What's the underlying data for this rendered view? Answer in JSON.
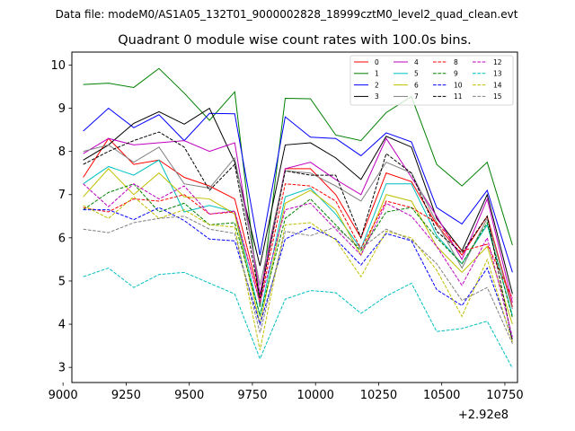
{
  "suptitle": "Data file: modeM0/AS1A05_132T01_9000002828_18999cztM0_level2_quad_clean.evt",
  "chart_data": {
    "type": "line",
    "title": "Quadrant 0 module wise count rates with 100.0s bins.",
    "xlabel": "",
    "ylabel": "",
    "x_offset_label": "+2.92e8",
    "xlim": [
      9035,
      10800
    ],
    "ylim": [
      2.65,
      10.3
    ],
    "xticks": [
      9000,
      9250,
      9500,
      9750,
      10000,
      10250,
      10500,
      10750
    ],
    "yticks": [
      3,
      4,
      5,
      6,
      7,
      8,
      9,
      10
    ],
    "x": [
      9080,
      9180,
      9280,
      9380,
      9480,
      9580,
      9680,
      9780,
      9880,
      9980,
      10080,
      10180,
      10280,
      10380,
      10480,
      10580,
      10680,
      10780
    ],
    "series": [
      {
        "name": "0",
        "color": "#ff0000",
        "dash": "solid",
        "values": [
          7.4,
          8.3,
          7.7,
          7.8,
          7.4,
          7.2,
          6.9,
          4.6,
          7.6,
          7.6,
          7.0,
          6.0,
          7.5,
          7.3,
          6.3,
          5.6,
          6.5,
          4.4
        ]
      },
      {
        "name": "1",
        "color": "#008000",
        "dash": "solid",
        "values": [
          9.55,
          9.58,
          9.48,
          9.92,
          9.35,
          8.72,
          9.38,
          4.4,
          9.23,
          9.22,
          8.38,
          8.25,
          8.9,
          9.27,
          7.7,
          7.2,
          7.75,
          5.83
        ]
      },
      {
        "name": "2",
        "color": "#0000ff",
        "dash": "solid",
        "values": [
          8.47,
          9.0,
          8.55,
          8.85,
          8.25,
          8.88,
          8.87,
          5.6,
          8.8,
          8.33,
          8.3,
          7.9,
          8.43,
          8.22,
          6.7,
          6.32,
          7.1,
          5.2
        ]
      },
      {
        "name": "3",
        "color": "#000000",
        "dash": "solid",
        "values": [
          7.8,
          8.15,
          8.65,
          8.92,
          8.63,
          9.0,
          7.75,
          5.35,
          8.15,
          8.2,
          7.85,
          7.35,
          8.35,
          8.1,
          6.45,
          5.7,
          7.0,
          4.7
        ]
      },
      {
        "name": "4",
        "color": "#bf00bf",
        "dash": "solid",
        "values": [
          7.95,
          8.3,
          8.15,
          8.2,
          8.25,
          8.0,
          8.2,
          4.7,
          7.6,
          7.75,
          7.35,
          7.0,
          8.3,
          7.4,
          6.5,
          5.5,
          6.9,
          4.5
        ]
      },
      {
        "name": "5",
        "color": "#00bfbf",
        "dash": "solid",
        "values": [
          7.25,
          7.65,
          7.45,
          7.8,
          6.6,
          6.75,
          6.6,
          4.2,
          6.95,
          7.15,
          6.55,
          5.75,
          7.25,
          7.25,
          6.05,
          5.4,
          6.3,
          4.2
        ]
      },
      {
        "name": "6",
        "color": "#bfbf00",
        "dash": "solid",
        "values": [
          6.95,
          7.6,
          7.0,
          7.5,
          6.95,
          6.9,
          6.55,
          4.0,
          6.8,
          7.1,
          6.65,
          5.6,
          7.0,
          6.85,
          5.8,
          5.2,
          5.8,
          4.0
        ]
      },
      {
        "name": "7",
        "color": "#808080",
        "dash": "solid",
        "values": [
          8.0,
          8.15,
          7.75,
          8.1,
          7.25,
          7.15,
          7.85,
          4.9,
          7.55,
          7.5,
          7.2,
          6.85,
          7.75,
          7.5,
          6.35,
          5.3,
          6.45,
          4.35
        ]
      },
      {
        "name": "8",
        "color": "#ff0000",
        "dash": "dashed",
        "values": [
          6.7,
          6.6,
          6.9,
          6.85,
          7.0,
          6.55,
          6.6,
          4.5,
          7.25,
          7.2,
          6.85,
          5.75,
          6.85,
          6.7,
          6.35,
          5.7,
          5.85,
          4.6
        ]
      },
      {
        "name": "9",
        "color": "#008000",
        "dash": "dashed",
        "values": [
          6.65,
          7.05,
          7.25,
          6.6,
          6.8,
          6.3,
          6.35,
          4.2,
          6.45,
          6.9,
          6.3,
          5.7,
          6.6,
          6.7,
          6.0,
          5.4,
          6.35,
          4.15
        ]
      },
      {
        "name": "10",
        "color": "#0000ff",
        "dash": "dashed",
        "values": [
          6.65,
          6.65,
          6.42,
          6.7,
          6.4,
          5.97,
          5.93,
          4.0,
          5.97,
          6.25,
          5.97,
          5.37,
          6.1,
          5.93,
          4.8,
          4.43,
          5.3,
          3.65
        ]
      },
      {
        "name": "11",
        "color": "#000000",
        "dash": "dashed",
        "values": [
          7.7,
          8.0,
          8.25,
          8.45,
          8.1,
          7.1,
          7.7,
          4.6,
          7.55,
          7.45,
          7.45,
          6.0,
          7.95,
          7.5,
          6.15,
          5.65,
          6.5,
          3.6
        ]
      },
      {
        "name": "12",
        "color": "#bf00bf",
        "dash": "dashed",
        "values": [
          7.25,
          6.72,
          7.25,
          6.9,
          7.2,
          6.55,
          6.62,
          4.5,
          6.65,
          6.8,
          6.2,
          5.6,
          6.8,
          6.5,
          5.8,
          4.9,
          6.0,
          3.7
        ]
      },
      {
        "name": "13",
        "color": "#00bfbf",
        "dash": "dashed",
        "values": [
          5.1,
          5.3,
          4.85,
          5.15,
          5.2,
          4.95,
          4.7,
          3.2,
          4.58,
          4.78,
          4.73,
          4.25,
          4.65,
          4.95,
          3.83,
          3.9,
          4.07,
          2.98
        ]
      },
      {
        "name": "14",
        "color": "#bfbf00",
        "dash": "dashed",
        "values": [
          6.75,
          6.45,
          6.95,
          6.45,
          6.65,
          6.3,
          6.25,
          3.4,
          6.3,
          6.35,
          5.95,
          5.1,
          6.15,
          6.0,
          5.25,
          4.18,
          5.5,
          3.58
        ]
      },
      {
        "name": "15",
        "color": "#808080",
        "dash": "dashed",
        "values": [
          6.2,
          6.12,
          6.35,
          6.45,
          6.5,
          6.2,
          6.1,
          3.8,
          6.15,
          6.05,
          6.25,
          5.75,
          6.2,
          5.95,
          5.4,
          4.55,
          4.85,
          3.55
        ]
      }
    ]
  }
}
